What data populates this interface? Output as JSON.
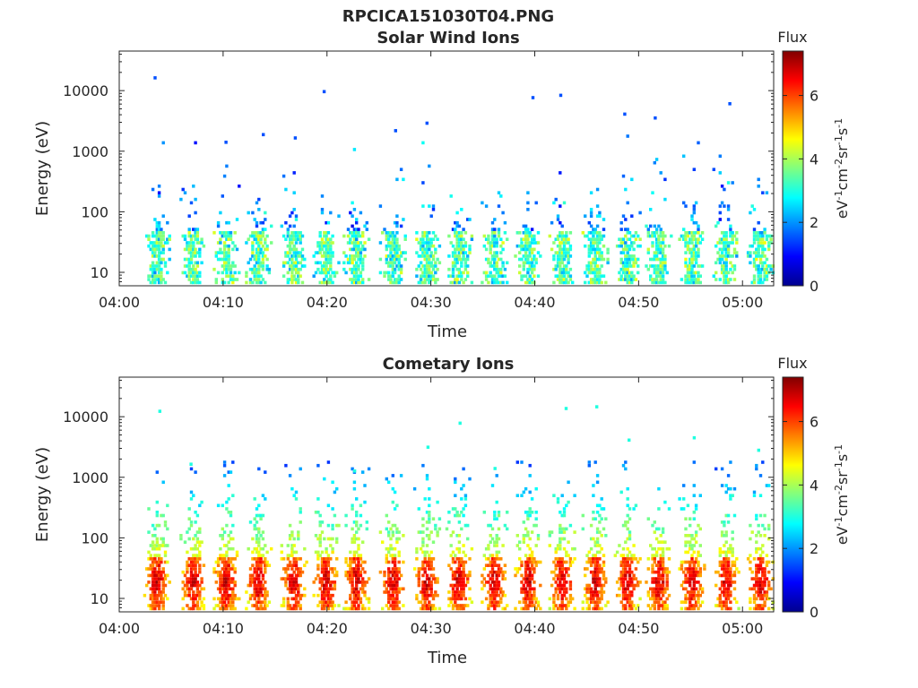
{
  "figure": {
    "title": "RPCICA151030T04.PNG"
  },
  "colorbar": {
    "label": "Flux",
    "units_main": "eV",
    "units_parts": [
      {
        "t": "eV",
        "sup": false
      },
      {
        "t": "-1",
        "sup": true
      },
      {
        "t": "cm",
        "sup": false
      },
      {
        "t": "-2",
        "sup": true
      },
      {
        "t": "sr",
        "sup": false
      },
      {
        "t": "-1",
        "sup": true
      },
      {
        "t": "s",
        "sup": false
      },
      {
        "t": "-1",
        "sup": true
      }
    ],
    "range": [
      0,
      7.4
    ],
    "ticks": [
      "0",
      "2",
      "4",
      "6"
    ],
    "colormap": "jet"
  },
  "chart_data": [
    {
      "type": "heatmap",
      "title": "Solar Wind Ions",
      "xlabel": "Time",
      "ylabel": "Energy (eV)",
      "yscale": "log",
      "ylim": [
        6,
        45000
      ],
      "xlim": [
        "04:00",
        "05:03"
      ],
      "xticks": [
        "04:00",
        "04:10",
        "04:20",
        "04:30",
        "04:40",
        "04:50",
        "05:00"
      ],
      "yticks": [
        "10",
        "100",
        "1000",
        "10000"
      ],
      "burst_times_min": [
        3.5,
        7.0,
        10.2,
        13.3,
        16.7,
        19.8,
        22.7,
        26.2,
        29.5,
        32.6,
        36.0,
        39.2,
        42.5,
        45.7,
        48.8,
        51.8,
        55.0,
        58.3,
        61.6
      ],
      "flux_level": "low",
      "core_energy_eV": [
        12,
        45
      ],
      "cells": []
    },
    {
      "type": "heatmap",
      "title": "Cometary Ions",
      "xlabel": "Time",
      "ylabel": "Energy (eV)",
      "yscale": "log",
      "ylim": [
        6,
        45000
      ],
      "xlim": [
        "04:00",
        "05:03"
      ],
      "xticks": [
        "04:00",
        "04:10",
        "04:20",
        "04:30",
        "04:40",
        "04:50",
        "05:00"
      ],
      "yticks": [
        "10",
        "100",
        "1000",
        "10000"
      ],
      "burst_times_min": [
        3.5,
        7.0,
        10.2,
        13.3,
        16.7,
        19.8,
        22.7,
        26.2,
        29.5,
        32.6,
        36.0,
        39.2,
        42.5,
        45.7,
        48.8,
        51.8,
        55.0,
        58.3,
        61.6
      ],
      "flux_level": "high",
      "core_energy_eV": [
        10,
        45
      ],
      "cells": []
    }
  ]
}
